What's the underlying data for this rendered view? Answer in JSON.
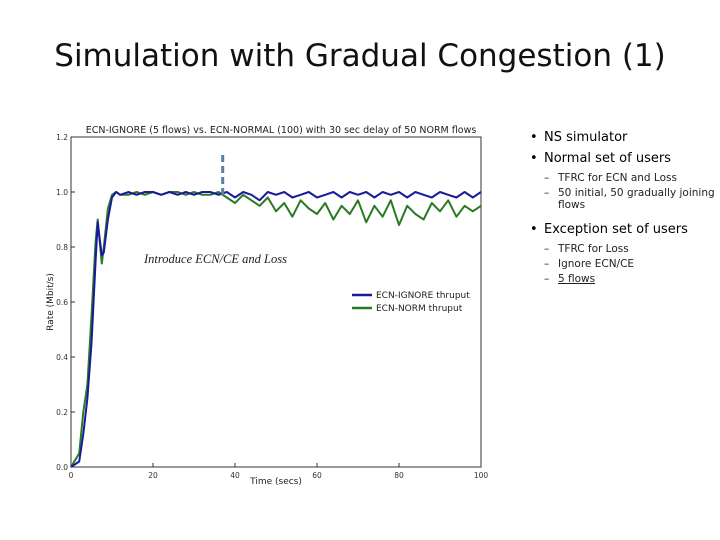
{
  "slide": {
    "title": "Simulation with Gradual Congestion (1)"
  },
  "bullets": {
    "b1": "NS simulator",
    "b2": "Normal set of users",
    "b2_sub1": "TFRC for ECN and Loss",
    "b2_sub2": "50 initial, 50 gradually joining flows",
    "b3": "Exception set of users",
    "b3_sub1": "TFRC for Loss",
    "b3_sub2": "Ignore ECN/CE",
    "b3_sub3": "5 flows",
    "bullet_glyph": "•",
    "dash_glyph": "–"
  },
  "chart_data": {
    "type": "line",
    "title": "ECN-IGNORE (5 flows) vs. ECN-NORMAL (100) with 30 sec delay of 50 NORM flows",
    "xlabel": "Time (secs)",
    "ylabel": "Rate (Mbit/s)",
    "xlim": [
      0,
      100
    ],
    "ylim": [
      0,
      1.2
    ],
    "xticks": [
      0,
      20,
      40,
      60,
      80,
      100
    ],
    "xtick_labels": [
      "0",
      "20",
      "40",
      "60",
      "80",
      "100"
    ],
    "yticks": [
      0.0,
      0.2,
      0.4,
      0.6,
      0.8,
      1.0,
      1.2
    ],
    "ytick_labels": [
      "0.0",
      "0.2",
      "0.4",
      "0.6",
      "0.8",
      "1.0",
      "1.2"
    ],
    "legend_position": "center-right",
    "annotation": {
      "text": "Introduce ECN/CE and Loss",
      "x": 37
    },
    "colors": {
      "ignore": "#1a1a9c",
      "norm": "#2a7a25",
      "marker": "#5a7fa0"
    },
    "series": [
      {
        "name": "ECN-IGNORE thruput",
        "x": [
          0,
          2,
          3,
          4,
          5,
          6,
          6.5,
          7,
          7.5,
          8,
          9,
          10,
          11,
          12,
          14,
          16,
          18,
          20,
          22,
          24,
          26,
          28,
          30,
          32,
          34,
          36,
          38,
          40,
          42,
          44,
          46,
          48,
          50,
          52,
          54,
          56,
          58,
          60,
          62,
          64,
          66,
          68,
          70,
          72,
          74,
          76,
          78,
          80,
          82,
          84,
          86,
          88,
          90,
          92,
          94,
          96,
          98,
          100
        ],
        "values": [
          0.0,
          0.02,
          0.12,
          0.25,
          0.45,
          0.75,
          0.89,
          0.83,
          0.77,
          0.78,
          0.9,
          0.98,
          1.0,
          0.99,
          1.0,
          0.99,
          1.0,
          1.0,
          0.99,
          1.0,
          0.99,
          1.0,
          0.99,
          1.0,
          1.0,
          0.99,
          1.0,
          0.98,
          1.0,
          0.99,
          0.97,
          1.0,
          0.99,
          1.0,
          0.98,
          0.99,
          1.0,
          0.98,
          0.99,
          1.0,
          0.98,
          1.0,
          0.99,
          1.0,
          0.98,
          1.0,
          0.99,
          1.0,
          0.98,
          1.0,
          0.99,
          0.98,
          1.0,
          0.99,
          0.98,
          1.0,
          0.98,
          1.0
        ]
      },
      {
        "name": "ECN-NORM thruput",
        "x": [
          0,
          2,
          3,
          4,
          5,
          6,
          6.5,
          7,
          7.5,
          8,
          9,
          10,
          11,
          12,
          14,
          16,
          18,
          20,
          22,
          24,
          26,
          28,
          30,
          32,
          34,
          36,
          38,
          40,
          42,
          44,
          46,
          48,
          50,
          52,
          54,
          56,
          58,
          60,
          62,
          64,
          66,
          68,
          70,
          72,
          74,
          76,
          78,
          80,
          82,
          84,
          86,
          88,
          90,
          92,
          94,
          96,
          98,
          100
        ],
        "values": [
          0.0,
          0.05,
          0.2,
          0.3,
          0.55,
          0.82,
          0.9,
          0.82,
          0.74,
          0.8,
          0.94,
          0.99,
          1.0,
          0.99,
          0.99,
          1.0,
          0.99,
          1.0,
          0.99,
          1.0,
          1.0,
          0.99,
          1.0,
          0.99,
          0.99,
          1.0,
          0.98,
          0.96,
          0.99,
          0.97,
          0.95,
          0.98,
          0.93,
          0.96,
          0.91,
          0.97,
          0.94,
          0.92,
          0.96,
          0.9,
          0.95,
          0.92,
          0.97,
          0.89,
          0.95,
          0.91,
          0.97,
          0.88,
          0.95,
          0.92,
          0.9,
          0.96,
          0.93,
          0.97,
          0.91,
          0.95,
          0.93,
          0.95
        ]
      }
    ]
  }
}
